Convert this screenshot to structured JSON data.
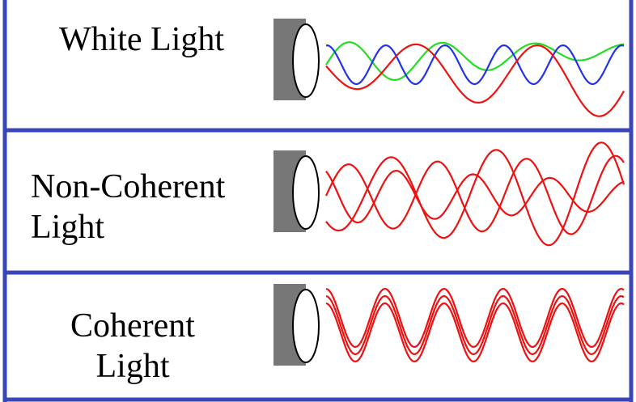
{
  "frame_color": "#3a45b8",
  "panels": [
    {
      "id": "white",
      "label_lines": [
        "White Light"
      ],
      "waves": [
        {
          "color": "#22dd22",
          "wavelength": 115,
          "amplitude": 28,
          "phase": 0.0,
          "drift": -0.12,
          "trend": -0.05
        },
        {
          "color": "#2233ee",
          "wavelength": 73,
          "amplitude": 24,
          "phase": 1.5,
          "drift": 0.0,
          "trend": 0.0
        },
        {
          "color": "#ee1111",
          "wavelength": 150,
          "amplitude": 26,
          "phase": 3.2,
          "drift": 0.12,
          "trend": 0.06
        }
      ]
    },
    {
      "id": "non-coherent",
      "label_lines": [
        "Non-Coherent",
        "Light"
      ],
      "waves": [
        {
          "color": "#ee1111",
          "wavelength": 110,
          "amplitude": 38,
          "phase": 0.0,
          "drift": 0.05,
          "trend": 0.0
        },
        {
          "color": "#ee1111",
          "wavelength": 95,
          "amplitude": 35,
          "phase": 2.1,
          "drift": -0.08,
          "trend": 0.0
        },
        {
          "color": "#ee1111",
          "wavelength": 130,
          "amplitude": 42,
          "phase": 4.0,
          "drift": 0.1,
          "trend": 0.0
        }
      ]
    },
    {
      "id": "coherent",
      "label_lines": [
        "Coherent",
        "Light"
      ],
      "waves": [
        {
          "color": "#ee1111",
          "wavelength": 73,
          "amplitude": 36,
          "phase": 1.6,
          "drift": 0.0,
          "trend": 0.0,
          "offset": -9
        },
        {
          "color": "#ee1111",
          "wavelength": 73,
          "amplitude": 36,
          "phase": 1.6,
          "drift": 0.0,
          "trend": 0.0,
          "offset": 0
        },
        {
          "color": "#ee1111",
          "wavelength": 73,
          "amplitude": 36,
          "phase": 1.6,
          "drift": 0.0,
          "trend": 0.0,
          "offset": 9
        }
      ]
    }
  ]
}
